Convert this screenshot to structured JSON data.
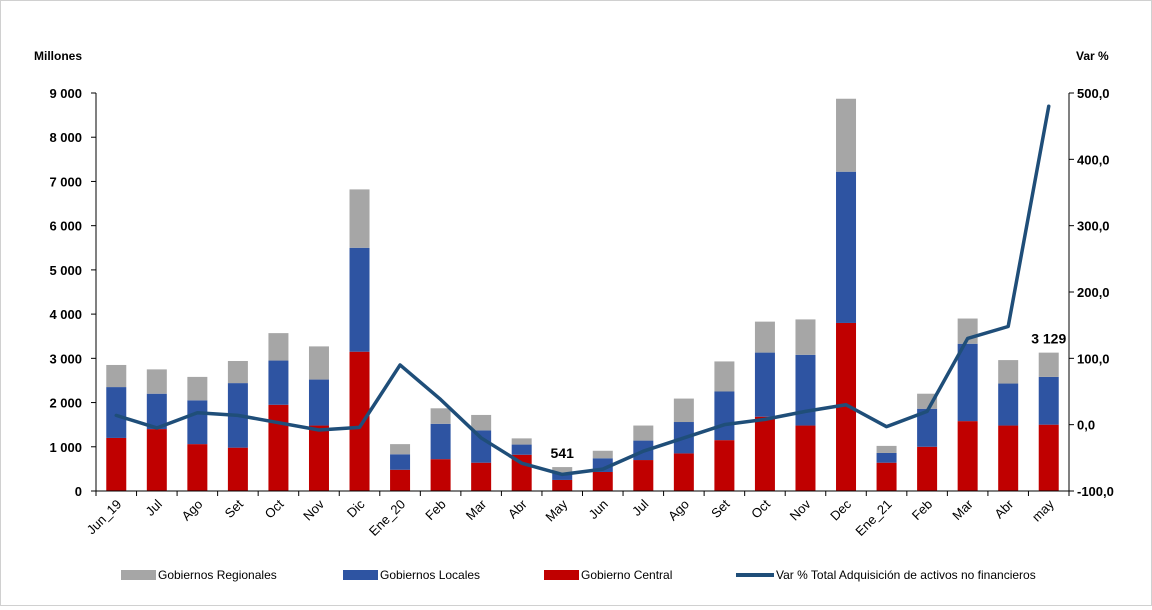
{
  "chart_data": {
    "type": "bar",
    "stacked": true,
    "left_axis_label": "Millones",
    "right_axis_label": "Var %",
    "left_ticks": [
      "0",
      "1 000",
      "2 000",
      "3 000",
      "4 000",
      "5 000",
      "6 000",
      "7 000",
      "8 000",
      "9 000"
    ],
    "right_ticks": [
      "-100,0",
      "0,0",
      "100,0",
      "200,0",
      "300,0",
      "400,0",
      "500,0"
    ],
    "ylim_left": [
      0,
      9000
    ],
    "ylim_right": [
      -100,
      500
    ],
    "categories": [
      "Jun_19",
      "Jul",
      "Ago",
      "Set",
      "Oct",
      "Nov",
      "Dic",
      "Ene_20",
      "Feb",
      "Mar",
      "Abr",
      "May",
      "Jun",
      "Jul",
      "Ago",
      "Set",
      "Oct",
      "Nov",
      "Dec",
      "Ene_21",
      "Feb",
      "Mar",
      "Abr",
      "may"
    ],
    "series": [
      {
        "name": "Gobierno Central",
        "kind": "bar",
        "axis": "left",
        "color": "#c00000",
        "values": [
          1200,
          1400,
          1060,
          980,
          1950,
          1480,
          3150,
          480,
          720,
          640,
          820,
          250,
          430,
          700,
          850,
          1150,
          1680,
          1480,
          3800,
          640,
          1000,
          1580,
          1480,
          1500
        ]
      },
      {
        "name": "Gobiernos Locales",
        "kind": "bar",
        "axis": "left",
        "color": "#2e54a2",
        "values": [
          1150,
          800,
          990,
          1460,
          1000,
          1040,
          2350,
          350,
          800,
          730,
          230,
          170,
          310,
          440,
          710,
          1100,
          1450,
          1600,
          3420,
          220,
          860,
          1750,
          950,
          1080
        ]
      },
      {
        "name": "Gobiernos Regionales",
        "kind": "bar",
        "axis": "left",
        "color": "#a6a6a6",
        "values": [
          500,
          550,
          530,
          500,
          620,
          750,
          1320,
          230,
          350,
          350,
          140,
          121,
          170,
          340,
          530,
          680,
          700,
          800,
          1650,
          160,
          340,
          570,
          530,
          549
        ]
      },
      {
        "name": "Var % Total  Adquisición de activos no financieros",
        "kind": "line",
        "axis": "right",
        "color": "#1f4e79",
        "values": [
          14,
          -5,
          18,
          14,
          3,
          -8,
          -4,
          90,
          38,
          -20,
          -58,
          -75,
          -67,
          -40,
          -20,
          0,
          8,
          20,
          30,
          -3,
          20,
          130,
          148,
          480
        ]
      }
    ],
    "data_labels": [
      {
        "category_index": 11,
        "text": "541"
      },
      {
        "category_index": 23,
        "text": "3 129"
      }
    ],
    "legend_order": [
      "Gobiernos Regionales",
      "Gobiernos Locales",
      "Gobierno Central",
      "Var % Total  Adquisición de activos no financieros"
    ],
    "legend_position": "bottom"
  }
}
